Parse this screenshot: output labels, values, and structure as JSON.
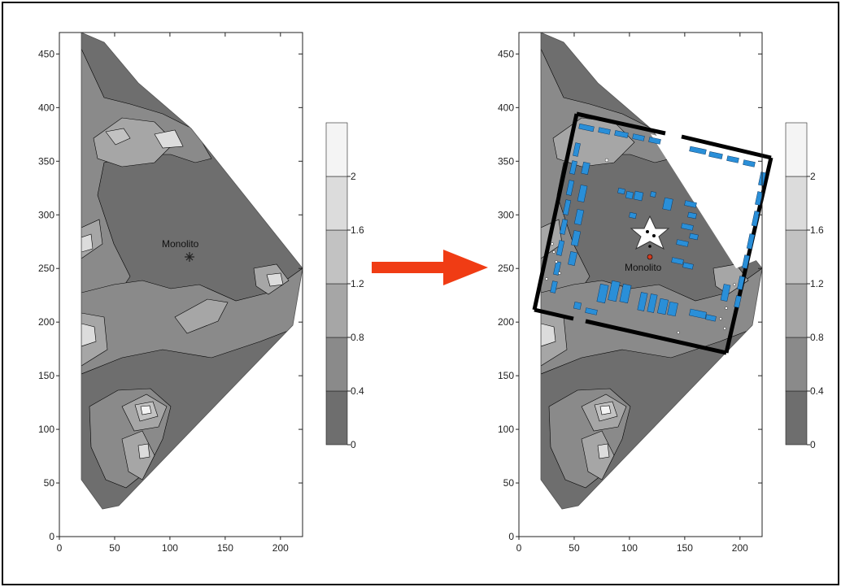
{
  "figure": {
    "left_panel": {
      "annotation": "Monolito",
      "x_ticks": [
        "0",
        "50",
        "100",
        "150",
        "200"
      ],
      "y_ticks": [
        "0",
        "50",
        "100",
        "150",
        "200",
        "250",
        "300",
        "350",
        "400",
        "450"
      ],
      "legend_ticks": [
        "0",
        "0.4",
        "0.8",
        "1.2",
        "1.6",
        "2"
      ]
    },
    "right_panel": {
      "annotation": "Monolito",
      "x_ticks": [
        "0",
        "50",
        "100",
        "150",
        "200"
      ],
      "y_ticks": [
        "0",
        "50",
        "100",
        "150",
        "200",
        "250",
        "300",
        "350",
        "400",
        "450"
      ],
      "legend_ticks": [
        "0",
        "0.4",
        "0.8",
        "1.2",
        "1.6",
        "2"
      ]
    },
    "arrow_color": "#f03c14",
    "grid_color": "#222222",
    "contour_colors": [
      "#6e6e6e",
      "#8a8a8a",
      "#a6a6a6",
      "#c2c2c2",
      "#dcdcdc",
      "#f4f4f4"
    ],
    "overlay_color": "#2a8fd8"
  },
  "chart_data": [
    {
      "type": "heatmap",
      "title": "",
      "xlabel": "",
      "ylabel": "",
      "xlim": [
        0,
        220
      ],
      "ylim": [
        0,
        470
      ],
      "x_ticks": [
        0,
        50,
        100,
        150,
        200
      ],
      "y_ticks": [
        0,
        50,
        100,
        150,
        200,
        250,
        300,
        350,
        400,
        450
      ],
      "colorbar_ticks": [
        0,
        0.4,
        0.8,
        1.2,
        1.6,
        2
      ],
      "colorbar_range": [
        0,
        2.4
      ],
      "annotations": [
        {
          "text": "Monolito",
          "x": 120,
          "y": 260,
          "marker": "asterisk"
        }
      ]
    },
    {
      "type": "heatmap",
      "title": "",
      "xlabel": "",
      "ylabel": "",
      "xlim": [
        0,
        220
      ],
      "ylim": [
        0,
        470
      ],
      "x_ticks": [
        0,
        50,
        100,
        150,
        200
      ],
      "y_ticks": [
        0,
        50,
        100,
        150,
        200,
        250,
        300,
        350,
        400,
        450
      ],
      "colorbar_ticks": [
        0,
        0.4,
        0.8,
        1.2,
        1.6,
        2
      ],
      "colorbar_range": [
        0,
        2.4
      ],
      "annotations": [
        {
          "text": "Monolito",
          "x": 120,
          "y": 260,
          "marker": "star"
        }
      ],
      "overlay": "tilted square site plan with blue rectangular structures"
    }
  ]
}
